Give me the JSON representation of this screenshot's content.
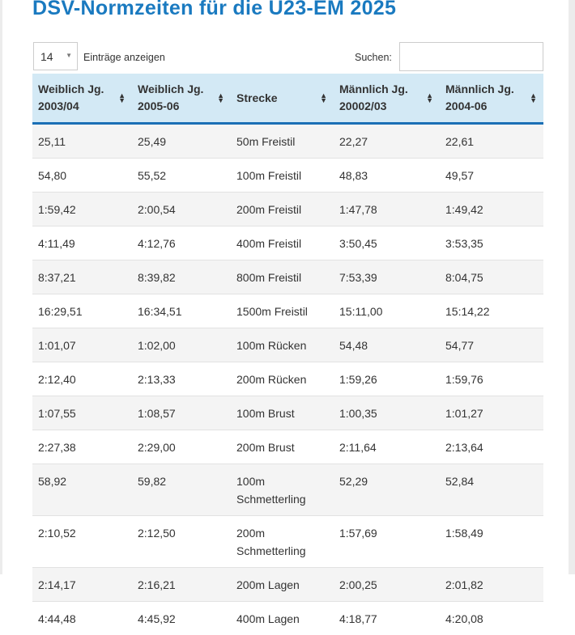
{
  "title": "DSV-Normzeiten für die U23-EM 2025",
  "controls": {
    "length_value": "14",
    "length_label": "Einträge anzeigen",
    "search_label": "Suchen:",
    "search_value": ""
  },
  "columns": [
    "Weiblich Jg. 2003/04",
    "Weiblich Jg. 2005-06",
    "Strecke",
    "Männlich Jg. 20002/03",
    "Männlich Jg. 2004-06"
  ],
  "rows": [
    [
      "25,11",
      "25,49",
      "50m Freistil",
      "22,27",
      "22,61"
    ],
    [
      "54,80",
      "55,52",
      "100m Freistil",
      "48,83",
      "49,57"
    ],
    [
      "1:59,42",
      "2:00,54",
      "200m Freistil",
      "1:47,78",
      "1:49,42"
    ],
    [
      "4:11,49",
      "4:12,76",
      "400m Freistil",
      "3:50,45",
      "3:53,35"
    ],
    [
      "8:37,21",
      "8:39,82",
      "800m Freistil",
      "7:53,39",
      "8:04,75"
    ],
    [
      "16:29,51",
      "16:34,51",
      "1500m Freistil",
      "15:11,00",
      "15:14,22"
    ],
    [
      "1:01,07",
      "1:02,00",
      "100m Rücken",
      "54,48",
      "54,77"
    ],
    [
      "2:12,40",
      "2:13,33",
      "200m Rücken",
      "1:59,26",
      "1:59,76"
    ],
    [
      "1:07,55",
      "1:08,57",
      "100m Brust",
      "1:00,35",
      "1:01,27"
    ],
    [
      "2:27,38",
      "2:29,00",
      "200m Brust",
      "2:11,64",
      "2:13,64"
    ],
    [
      "58,92",
      "59,82",
      "100m Schmetterling",
      "52,29",
      "52,84"
    ],
    [
      "2:10,52",
      "2:12,50",
      "200m Schmetterling",
      "1:57,69",
      "1:58,49"
    ],
    [
      "2:14,17",
      "2:16,21",
      "200m Lagen",
      "2:00,25",
      "2:01,82"
    ],
    [
      "4:44,48",
      "4:45,92",
      "400m Lagen",
      "4:18,77",
      "4:20,08"
    ]
  ],
  "colors": {
    "title": "#1a7ac0",
    "header_bg": "#d3e9f5",
    "header_border": "#1a6fb5"
  }
}
